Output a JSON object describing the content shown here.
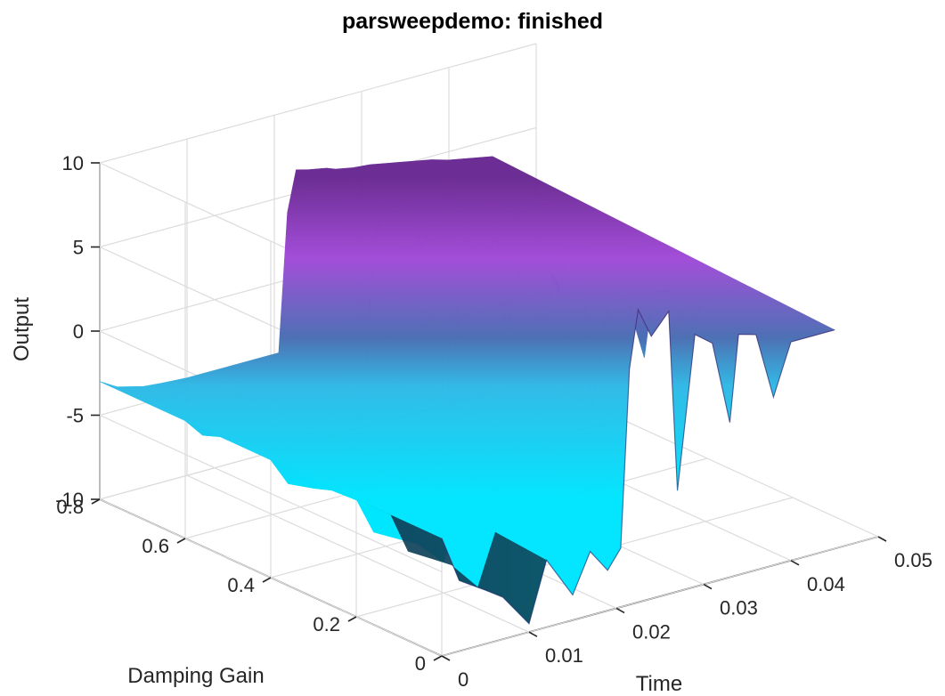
{
  "chart_data": {
    "type": "surface",
    "title": "parsweepdemo: finished",
    "xlabel": "Time",
    "ylabel": "Damping Gain",
    "zlabel": "Output",
    "xlim": [
      0,
      0.05
    ],
    "ylim": [
      0,
      0.8
    ],
    "zlim": [
      -10,
      10
    ],
    "x_ticks": [
      "0",
      "0.01",
      "0.02",
      "0.03",
      "0.04",
      "0.05"
    ],
    "y_ticks": [
      "0",
      "0.2",
      "0.4",
      "0.6",
      "0.8"
    ],
    "z_ticks": [
      "-10",
      "-5",
      "0",
      "5",
      "10"
    ],
    "grid": true,
    "colormap": "cool",
    "surface": {
      "time": [
        0.0,
        0.002,
        0.005,
        0.007,
        0.01,
        0.012,
        0.015,
        0.017,
        0.019,
        0.0205,
        0.0215,
        0.0225,
        0.024,
        0.026,
        0.027,
        0.029,
        0.031,
        0.033,
        0.034,
        0.036,
        0.038,
        0.04,
        0.042,
        0.045
      ],
      "damping_gain": [
        0.0,
        0.2,
        0.4,
        0.6,
        0.8
      ],
      "output_at_min_gain": [
        -3.0,
        -5.8,
        -6.8,
        -7.5,
        -9.5,
        -6.0,
        -8.5,
        -6.2,
        -7.6,
        -6.5,
        4.0,
        7.4,
        5.6,
        6.8,
        -4.0,
        5.0,
        4.2,
        -0.8,
        4.3,
        4.0,
        0.0,
        3.0,
        3.0,
        3.0
      ],
      "output_at_max_gain": [
        -3.0,
        -3.6,
        -4.0,
        -4.1,
        -4.2,
        -4.2,
        -4.2,
        -4.2,
        -4.2,
        -4.2,
        4.0,
        6.4,
        6.2,
        6.0,
        5.8,
        5.6,
        5.5,
        5.3,
        5.2,
        5.0,
        4.8,
        4.5,
        4.3,
        4.0
      ]
    },
    "colors": {
      "low": "#00ffff",
      "high": "#ff00ff",
      "shade": "#0b2540"
    }
  }
}
